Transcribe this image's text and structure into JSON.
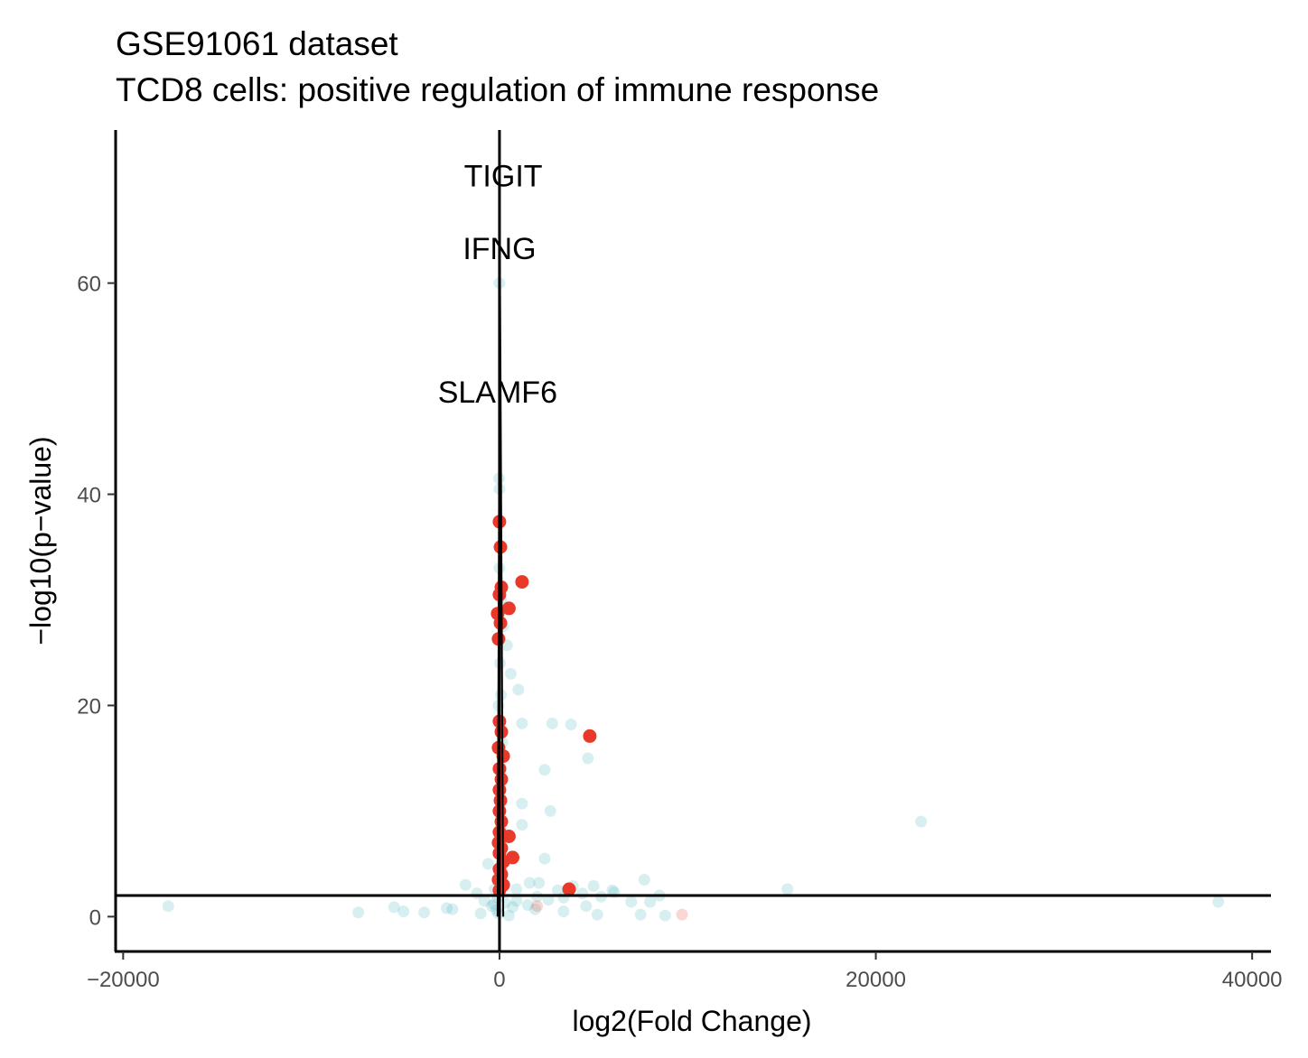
{
  "chart_data": {
    "type": "scatter",
    "title": "GSE91061 dataset",
    "subtitle": "TCD8 cells: positive regulation of immune response",
    "xlabel": "log2(Fold Change)",
    "ylabel": "−log10(p−value)",
    "xlim": [
      -20400,
      41000
    ],
    "ylim": [
      -3.3,
      74.5
    ],
    "x_ticks": [
      -20000,
      0,
      20000,
      40000
    ],
    "x_tick_labels": [
      "−20000",
      "0",
      "20000",
      "40000"
    ],
    "y_ticks": [
      0,
      20,
      40,
      60
    ],
    "y_tick_labels": [
      "0",
      "20",
      "40",
      "60"
    ],
    "grid": false,
    "legend": "none",
    "colors": {
      "background_genes": "#4db8bd",
      "pathway_genes": "#e8392a",
      "reference_lines": "#000000"
    },
    "reference_lines": {
      "vertical_x": 0,
      "horizontal_y": 2
    },
    "series": [
      {
        "type": "background",
        "points": [
          [
            -17600,
            1.0
          ],
          [
            -7500,
            0.4
          ],
          [
            -5600,
            0.9
          ],
          [
            -5100,
            0.5
          ],
          [
            -4000,
            0.4
          ],
          [
            -2800,
            0.8
          ],
          [
            -2500,
            0.7
          ],
          [
            -1800,
            3.0
          ],
          [
            -1200,
            2.2
          ],
          [
            -800,
            1.5
          ],
          [
            -600,
            5.0
          ],
          [
            -400,
            1.0
          ],
          [
            -250,
            2.6
          ],
          [
            -150,
            0.6
          ],
          [
            -100,
            1.8
          ],
          [
            -50,
            0.3
          ],
          [
            -20,
            4.5
          ],
          [
            0,
            60.0
          ],
          [
            -20,
            41.5
          ],
          [
            0,
            40.5
          ],
          [
            100,
            35.0
          ],
          [
            0,
            33.0
          ],
          [
            100,
            30.0
          ],
          [
            200,
            27.5
          ],
          [
            400,
            25.7
          ],
          [
            600,
            23.0
          ],
          [
            1000,
            21.5
          ],
          [
            1200,
            18.3
          ],
          [
            2800,
            18.3
          ],
          [
            3800,
            18.2
          ],
          [
            4700,
            15.0
          ],
          [
            2400,
            13.9
          ],
          [
            1200,
            10.7
          ],
          [
            2700,
            10.0
          ],
          [
            1200,
            8.7
          ],
          [
            2400,
            5.5
          ],
          [
            1600,
            3.2
          ],
          [
            2100,
            3.2
          ],
          [
            3100,
            2.5
          ],
          [
            3900,
            2.9
          ],
          [
            4400,
            2.2
          ],
          [
            5000,
            2.9
          ],
          [
            5400,
            1.9
          ],
          [
            6100,
            2.3
          ],
          [
            7000,
            1.4
          ],
          [
            7700,
            3.5
          ],
          [
            8000,
            1.4
          ],
          [
            7500,
            0.2
          ],
          [
            8800,
            0.1
          ],
          [
            5200,
            0.2
          ],
          [
            3400,
            0.5
          ],
          [
            1900,
            0.7
          ],
          [
            1500,
            1.1
          ],
          [
            900,
            1.5
          ],
          [
            700,
            0.9
          ],
          [
            300,
            1.3
          ],
          [
            150,
            8.0
          ],
          [
            50,
            12.0
          ],
          [
            100,
            14.0
          ],
          [
            150,
            16.5
          ],
          [
            -50,
            20.0
          ],
          [
            80,
            21.0
          ],
          [
            30,
            24.0
          ],
          [
            50,
            28.0
          ],
          [
            60,
            31.0
          ],
          [
            15300,
            2.6
          ],
          [
            22400,
            9.0
          ],
          [
            38200,
            1.4
          ],
          [
            2600,
            1.6
          ],
          [
            3400,
            1.8
          ],
          [
            4600,
            1.0
          ],
          [
            500,
            0.1
          ],
          [
            -300,
            1.2
          ],
          [
            900,
            2.6
          ],
          [
            2000,
            1.9
          ],
          [
            6000,
            2.5
          ],
          [
            8500,
            2.0
          ],
          [
            -1000,
            0.3
          ]
        ]
      },
      {
        "type": "pathway",
        "points": [
          [
            0,
            37.4
          ],
          [
            50,
            35.0
          ],
          [
            1200,
            31.7
          ],
          [
            100,
            31.2
          ],
          [
            0,
            30.5
          ],
          [
            500,
            29.2
          ],
          [
            -100,
            28.7
          ],
          [
            50,
            27.8
          ],
          [
            -50,
            26.3
          ],
          [
            4800,
            17.1
          ],
          [
            0,
            18.5
          ],
          [
            100,
            17.5
          ],
          [
            -50,
            16.0
          ],
          [
            200,
            15.2
          ],
          [
            0,
            14.0
          ],
          [
            100,
            13.0
          ],
          [
            0,
            12.0
          ],
          [
            50,
            11.0
          ],
          [
            0,
            10.0
          ],
          [
            100,
            9.0
          ],
          [
            0,
            8.0
          ],
          [
            500,
            7.6
          ],
          [
            -50,
            7.0
          ],
          [
            100,
            6.5
          ],
          [
            0,
            6.0
          ],
          [
            700,
            5.6
          ],
          [
            200,
            5.2
          ],
          [
            0,
            4.5
          ],
          [
            100,
            4.0
          ],
          [
            -50,
            3.5
          ],
          [
            3700,
            2.6
          ],
          [
            200,
            3.0
          ],
          [
            0,
            2.5
          ]
        ]
      },
      {
        "type": "faded-pathway",
        "points": [
          [
            9700,
            0.2
          ],
          [
            2000,
            1.0
          ]
        ]
      }
    ],
    "labels": [
      {
        "gene": "TIGIT",
        "x": 200,
        "y": 69.3,
        "label_y": 70.2
      },
      {
        "gene": "IFNG",
        "x": 0,
        "y": 62.4,
        "label_y": 63.3
      },
      {
        "gene": "SLAMF6",
        "x": -100,
        "y": 48.7,
        "label_y": 49.7
      }
    ]
  }
}
